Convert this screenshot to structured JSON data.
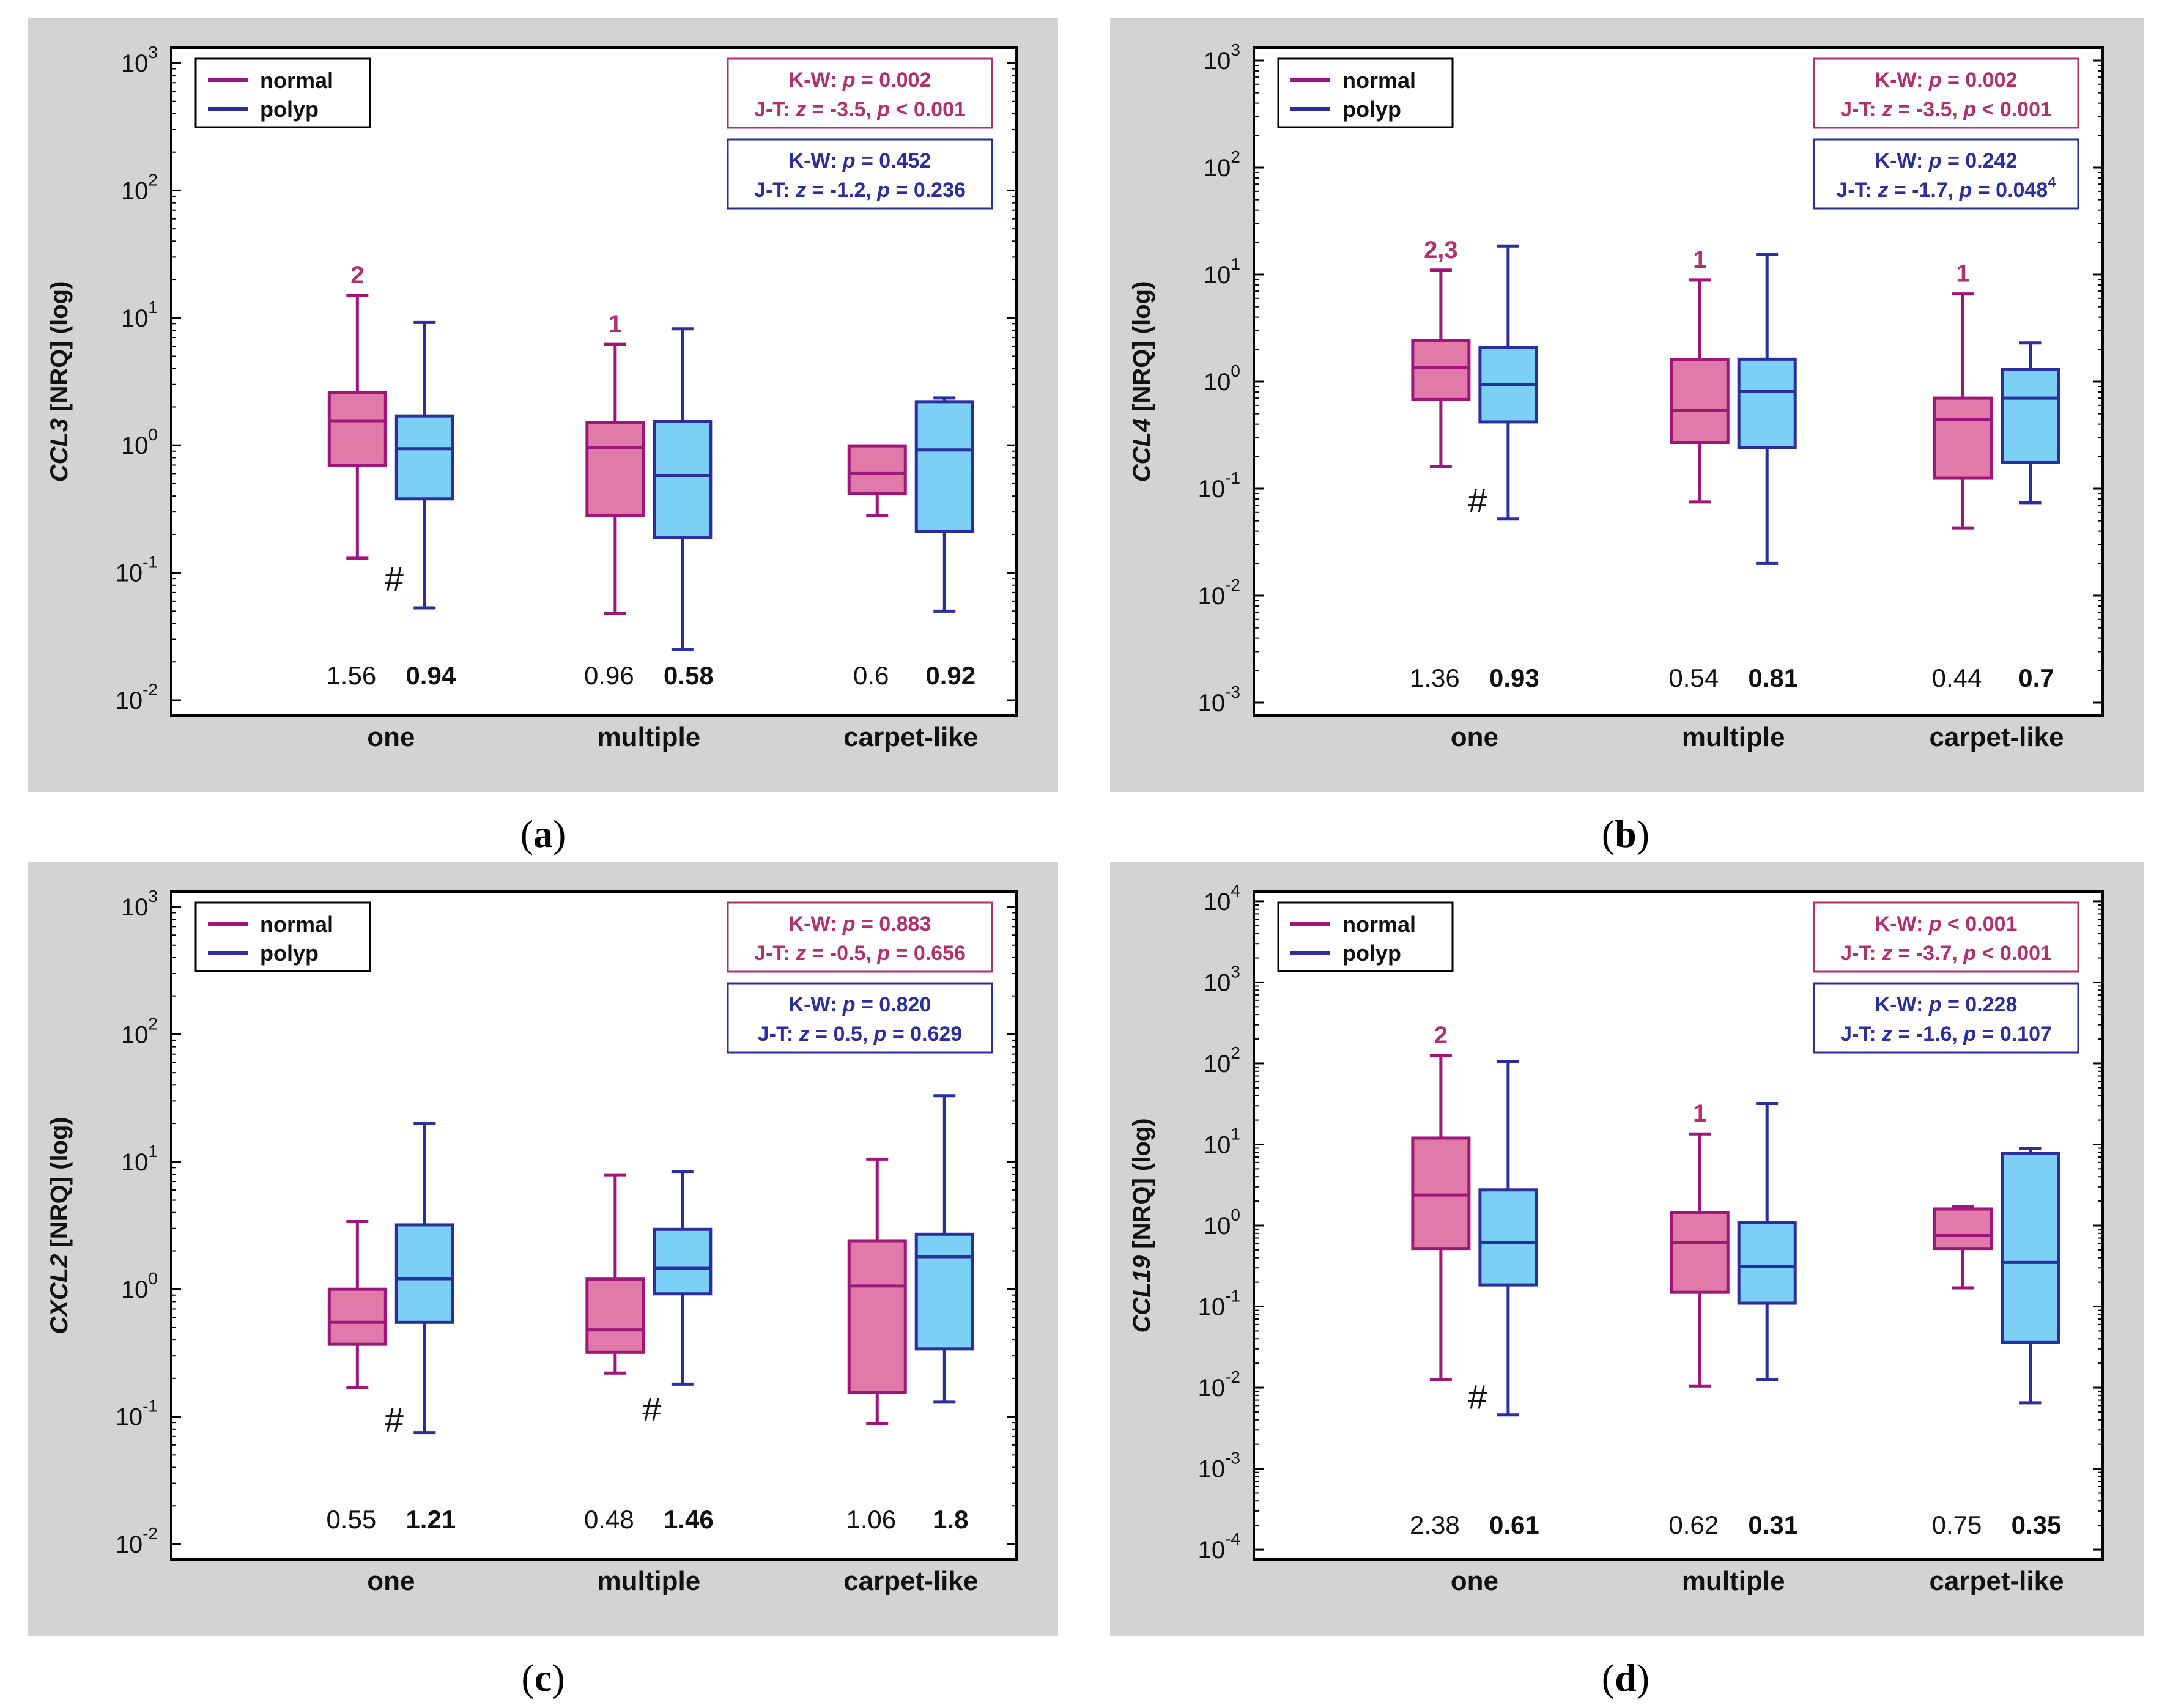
{
  "colors": {
    "panel_bg": "#d3d3d3",
    "plot_bg": "#ffffff",
    "normal_stroke": "#a0157a",
    "normal_fill": "#e07aa8",
    "polyp_stroke": "#2b2e9e",
    "polyp_fill": "#7ccff5",
    "normal_box_text": "#b2306b",
    "polyp_box_text": "#2b2e9e",
    "text": "#111111"
  },
  "legend": {
    "normal": "normal",
    "polyp": "polyp"
  },
  "chart_data": [
    {
      "panel_label": "(a)",
      "type": "boxplot",
      "ylabel_gene": "CCL3",
      "ylabel_rest": " [NRQ] (log)",
      "yscale": "log",
      "ylim_exp": [
        -2,
        3
      ],
      "categories": [
        "one",
        "multiple",
        "carpet-like"
      ],
      "series": [
        {
          "name": "normal",
          "boxes": [
            {
              "min": 0.13,
              "q1": 0.7,
              "median": 1.56,
              "q3": 2.6,
              "max": 15
            },
            {
              "min": 0.048,
              "q1": 0.28,
              "median": 0.96,
              "q3": 1.5,
              "max": 6.2
            },
            {
              "min": 0.28,
              "q1": 0.42,
              "median": 0.6,
              "q3": 0.99,
              "max": 0.99
            }
          ]
        },
        {
          "name": "polyp",
          "boxes": [
            {
              "min": 0.053,
              "q1": 0.38,
              "median": 0.94,
              "q3": 1.7,
              "max": 9.2
            },
            {
              "min": 0.025,
              "q1": 0.19,
              "median": 0.58,
              "q3": 1.55,
              "max": 8.2
            },
            {
              "min": 0.05,
              "q1": 0.21,
              "median": 0.92,
              "q3": 2.2,
              "max": 2.35
            }
          ]
        }
      ],
      "median_labels": {
        "normal": [
          "1.56",
          "0.96",
          "0.6"
        ],
        "polyp": [
          "0.94",
          "0.58",
          "0.92"
        ]
      },
      "sig_labels": [
        {
          "group": 0,
          "text": "2"
        },
        {
          "group": 1,
          "text": "1"
        }
      ],
      "hash": [
        {
          "group": 0,
          "value": 0.09
        }
      ],
      "stats_normal": {
        "kw_p": "p = 0.002",
        "jt_z": "z = -3.5,",
        "jt_p": "p < 0.001"
      },
      "stats_polyp": {
        "kw_p": "p = 0.452",
        "jt_z": "z = -1.2,",
        "jt_p": "p = 0.236",
        "jt_sup": ""
      }
    },
    {
      "panel_label": "(b)",
      "type": "boxplot",
      "ylabel_gene": "CCL4",
      "ylabel_rest": " [NRQ] (log)",
      "yscale": "log",
      "ylim_exp": [
        -3,
        3
      ],
      "categories": [
        "one",
        "multiple",
        "carpet-like"
      ],
      "series": [
        {
          "name": "normal",
          "boxes": [
            {
              "min": 0.16,
              "q1": 0.68,
              "median": 1.36,
              "q3": 2.4,
              "max": 11
            },
            {
              "min": 0.075,
              "q1": 0.27,
              "median": 0.54,
              "q3": 1.6,
              "max": 8.9
            },
            {
              "min": 0.043,
              "q1": 0.125,
              "median": 0.44,
              "q3": 0.7,
              "max": 6.6
            }
          ]
        },
        {
          "name": "polyp",
          "boxes": [
            {
              "min": 0.052,
              "q1": 0.42,
              "median": 0.93,
              "q3": 2.1,
              "max": 18.5
            },
            {
              "min": 0.02,
              "q1": 0.24,
              "median": 0.81,
              "q3": 1.62,
              "max": 15.5
            },
            {
              "min": 0.074,
              "q1": 0.175,
              "median": 0.7,
              "q3": 1.3,
              "max": 2.3
            }
          ]
        }
      ],
      "median_labels": {
        "normal": [
          "1.36",
          "0.54",
          "0.44"
        ],
        "polyp": [
          "0.93",
          "0.81",
          "0.7"
        ]
      },
      "sig_labels": [
        {
          "group": 0,
          "text": "2,3"
        },
        {
          "group": 1,
          "text": "1"
        },
        {
          "group": 2,
          "text": "1"
        }
      ],
      "hash": [
        {
          "group": 0,
          "value": 0.078
        }
      ],
      "stats_normal": {
        "kw_p": "p = 0.002",
        "jt_z": "z = -3.5,",
        "jt_p": "p < 0.001"
      },
      "stats_polyp": {
        "kw_p": "p = 0.242",
        "jt_z": "z = -1.7,",
        "jt_p": "p = 0.048",
        "jt_sup": "4"
      }
    },
    {
      "panel_label": "(c)",
      "type": "boxplot",
      "ylabel_gene": "CXCL2",
      "ylabel_rest": " [NRQ] (log)",
      "yscale": "log",
      "ylim_exp": [
        -2,
        3
      ],
      "categories": [
        "one",
        "multiple",
        "carpet-like"
      ],
      "series": [
        {
          "name": "normal",
          "boxes": [
            {
              "min": 0.17,
              "q1": 0.37,
              "median": 0.55,
              "q3": 1.0,
              "max": 3.4
            },
            {
              "min": 0.22,
              "q1": 0.32,
              "median": 0.48,
              "q3": 1.2,
              "max": 7.9
            },
            {
              "min": 0.088,
              "q1": 0.155,
              "median": 1.06,
              "q3": 2.4,
              "max": 10.5
            }
          ]
        },
        {
          "name": "polyp",
          "boxes": [
            {
              "min": 0.075,
              "q1": 0.55,
              "median": 1.21,
              "q3": 3.2,
              "max": 20
            },
            {
              "min": 0.18,
              "q1": 0.92,
              "median": 1.46,
              "q3": 2.95,
              "max": 8.4
            },
            {
              "min": 0.13,
              "q1": 0.34,
              "median": 1.8,
              "q3": 2.7,
              "max": 33
            }
          ]
        }
      ],
      "median_labels": {
        "normal": [
          "0.55",
          "0.48",
          "1.06"
        ],
        "polyp": [
          "1.21",
          "1.46",
          "1.8"
        ]
      },
      "sig_labels": [],
      "hash": [
        {
          "group": 0,
          "value": 0.095
        },
        {
          "group": 1,
          "value": 0.115
        }
      ],
      "stats_normal": {
        "kw_p": "p = 0.883",
        "jt_z": "z = -0.5,",
        "jt_p": "p = 0.656"
      },
      "stats_polyp": {
        "kw_p": "p = 0.820",
        "jt_z": "z = 0.5,",
        "jt_p": "p = 0.629",
        "jt_sup": ""
      }
    },
    {
      "panel_label": "(d)",
      "type": "boxplot",
      "ylabel_gene": "CCL19",
      "ylabel_rest": "  [NRQ] (log)",
      "yscale": "log",
      "ylim_exp": [
        -4,
        4
      ],
      "categories": [
        "one",
        "multiple",
        "carpet-like"
      ],
      "series": [
        {
          "name": "normal",
          "boxes": [
            {
              "min": 0.0125,
              "q1": 0.52,
              "median": 2.38,
              "q3": 12,
              "max": 125
            },
            {
              "min": 0.0105,
              "q1": 0.15,
              "median": 0.62,
              "q3": 1.45,
              "max": 13.5
            },
            {
              "min": 0.17,
              "q1": 0.52,
              "median": 0.75,
              "q3": 1.6,
              "max": 1.7
            }
          ]
        },
        {
          "name": "polyp",
          "boxes": [
            {
              "min": 0.0046,
              "q1": 0.185,
              "median": 0.61,
              "q3": 2.75,
              "max": 105
            },
            {
              "min": 0.0125,
              "q1": 0.11,
              "median": 0.31,
              "q3": 1.1,
              "max": 32
            },
            {
              "min": 0.0065,
              "q1": 0.036,
              "median": 0.35,
              "q3": 7.8,
              "max": 9.0
            }
          ]
        }
      ],
      "median_labels": {
        "normal": [
          "2.38",
          "0.62",
          "0.75"
        ],
        "polyp": [
          "0.61",
          "0.31",
          "0.35"
        ]
      },
      "sig_labels": [
        {
          "group": 0,
          "text": "2"
        },
        {
          "group": 1,
          "text": "1"
        }
      ],
      "hash": [
        {
          "group": 0,
          "value": 0.0078
        }
      ],
      "stats_normal": {
        "kw_p": "p < 0.001",
        "jt_z": "z = -3.7,",
        "jt_p": "p < 0.001"
      },
      "stats_polyp": {
        "kw_p": "p = 0.228",
        "jt_z": "z = -1.6,",
        "jt_p": "p = 0.107",
        "jt_sup": ""
      }
    }
  ]
}
